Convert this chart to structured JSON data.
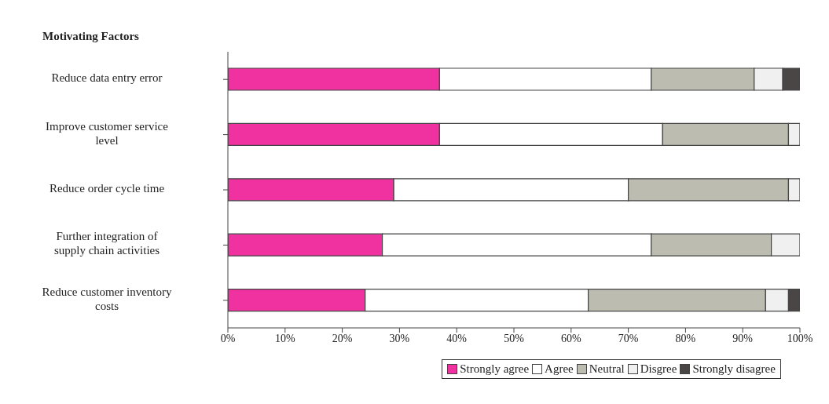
{
  "chart_data": {
    "type": "bar",
    "orientation": "horizontal",
    "stacked": true,
    "title": "Motivating Factors",
    "categories": [
      "Reduce data entry error",
      "Improve customer service level",
      "Reduce order cycle time",
      "Further integration of supply chain activities",
      "Reduce customer inventory costs"
    ],
    "series": [
      {
        "name": "Strongly agree",
        "color": "#f032a0",
        "values": [
          37,
          37,
          29,
          27,
          24
        ]
      },
      {
        "name": "Agree",
        "color": "#ffffff",
        "values": [
          37,
          39,
          41,
          47,
          39
        ]
      },
      {
        "name": "Neutral",
        "color": "#bcbcb0",
        "values": [
          18,
          22,
          28,
          21,
          31
        ]
      },
      {
        "name": "Disgree",
        "color": "#f0f0f0",
        "values": [
          5,
          2,
          2,
          5,
          4
        ]
      },
      {
        "name": "Strongly disagree",
        "color": "#4a4646",
        "values": [
          3,
          0,
          0,
          0,
          2
        ]
      }
    ],
    "xlim": [
      0,
      100
    ],
    "xticks": [
      {
        "value": 0,
        "label": "0%"
      },
      {
        "value": 10,
        "label": "10%"
      },
      {
        "value": 20,
        "label": "20%"
      },
      {
        "value": 30,
        "label": "30%"
      },
      {
        "value": 40,
        "label": "40%"
      },
      {
        "value": 50,
        "label": "50%"
      },
      {
        "value": 60,
        "label": "60%"
      },
      {
        "value": 70,
        "label": "70%"
      },
      {
        "value": 80,
        "label": "80%"
      },
      {
        "value": 90,
        "label": "90%"
      },
      {
        "value": 100,
        "label": "100%"
      }
    ],
    "grid": false,
    "legend": "bottom"
  }
}
